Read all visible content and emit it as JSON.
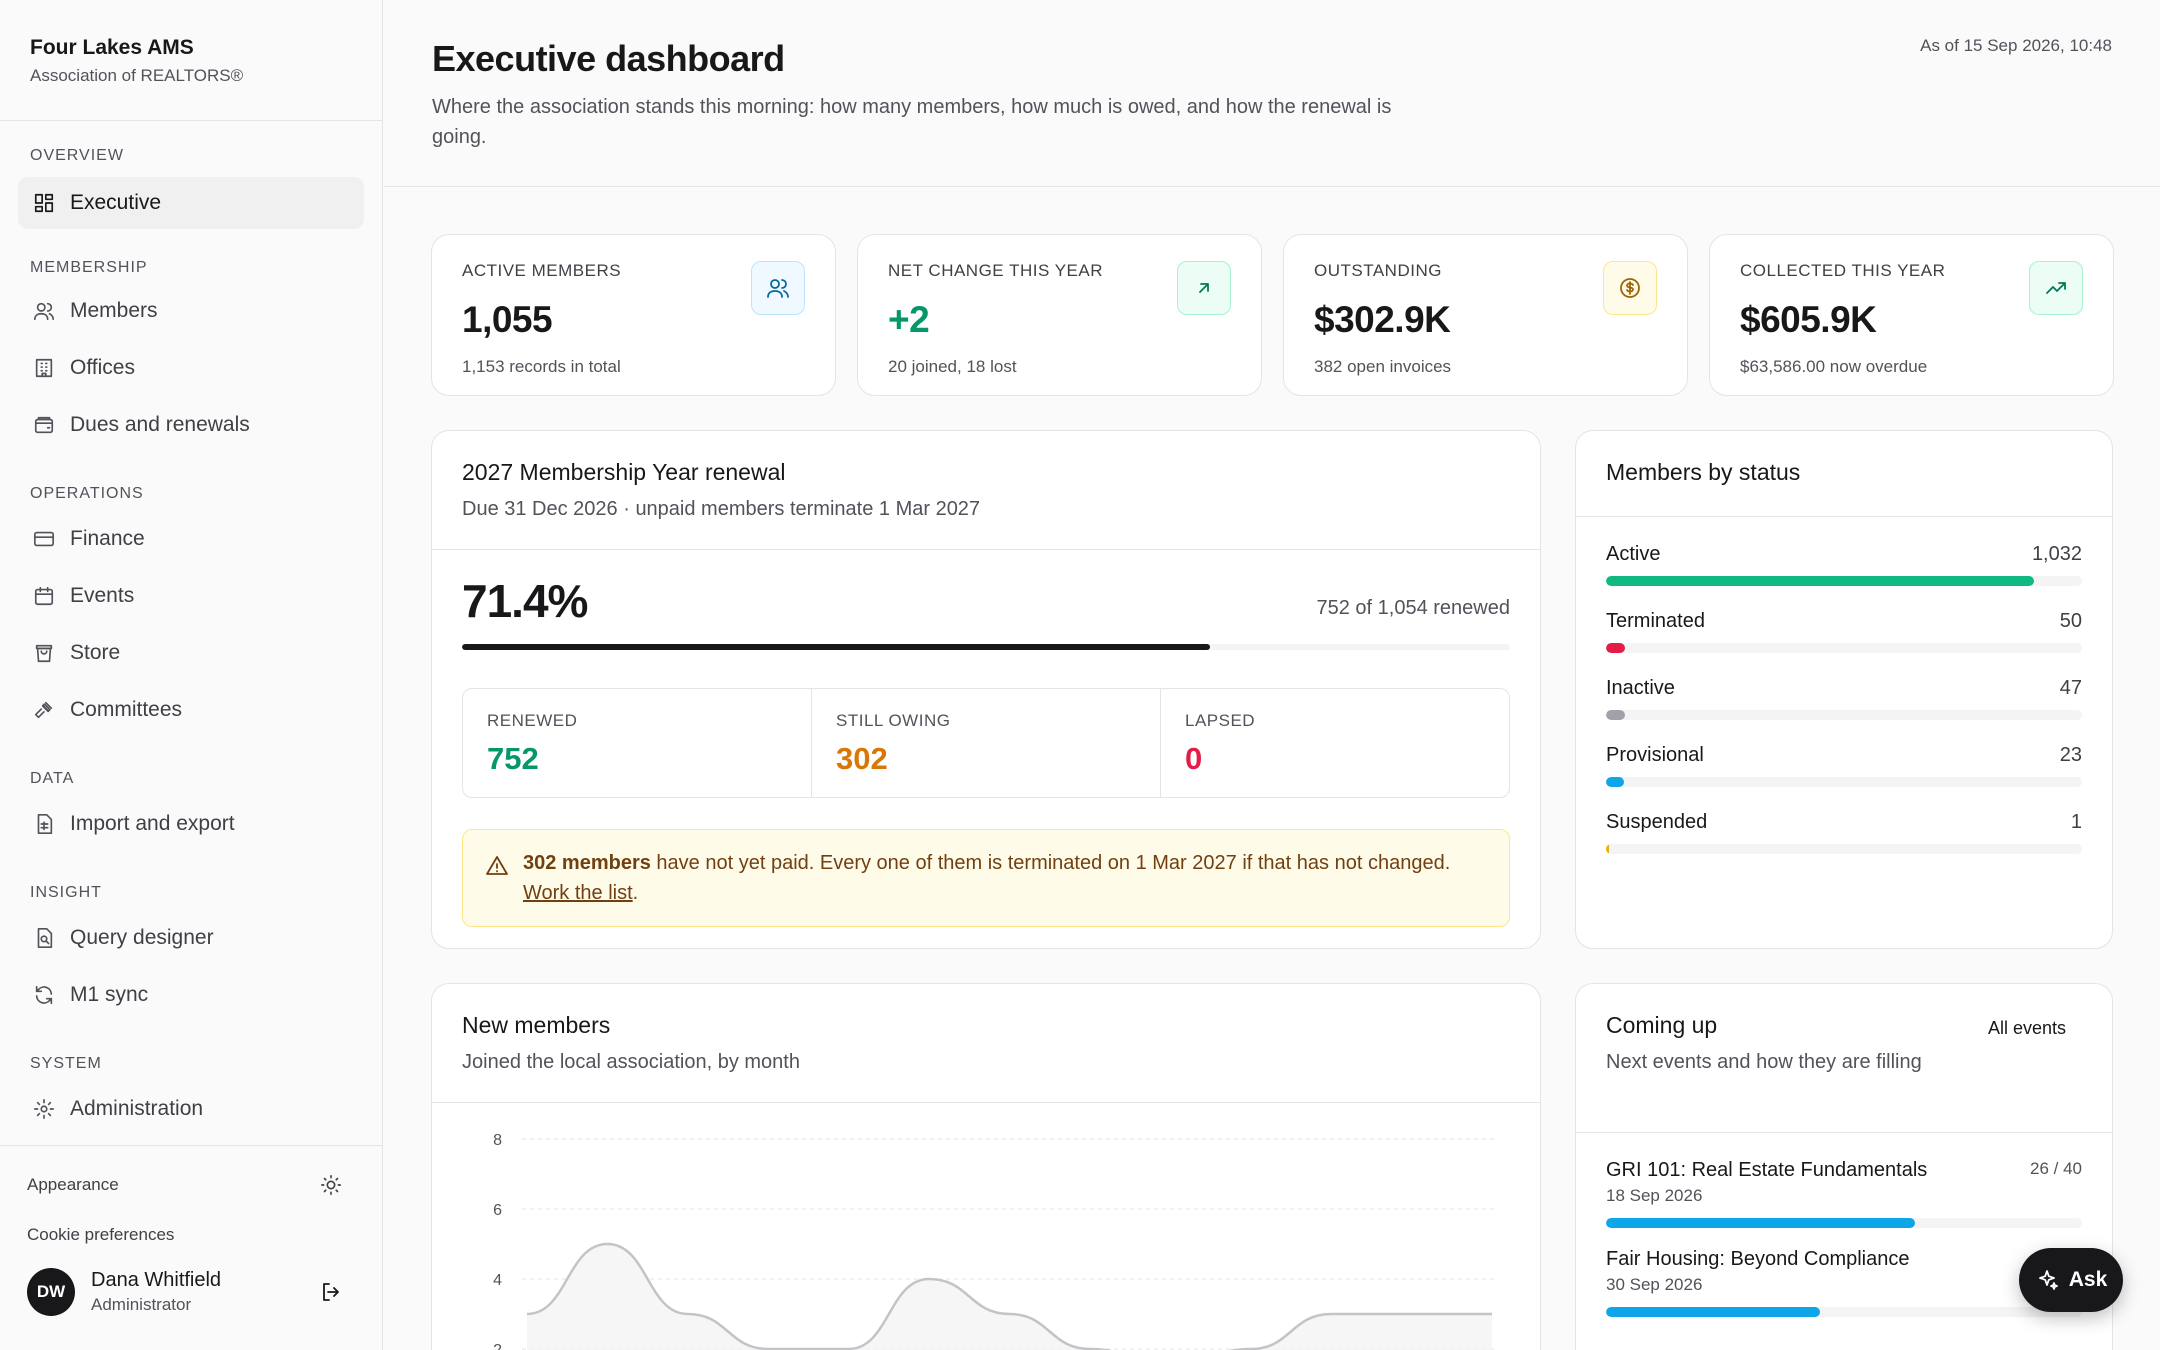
{
  "brand": {
    "name": "Four Lakes AMS",
    "subtitle": "Association of REALTORS®"
  },
  "nav": {
    "overview": "OVERVIEW",
    "executive": "Executive",
    "membership": "MEMBERSHIP",
    "members": "Members",
    "offices": "Offices",
    "dues": "Dues and renewals",
    "operations": "OPERATIONS",
    "finance": "Finance",
    "events": "Events",
    "store": "Store",
    "committees": "Committees",
    "data": "DATA",
    "import_export": "Import and export",
    "insight": "INSIGHT",
    "query_designer": "Query designer",
    "m1_sync": "M1 sync",
    "system": "SYSTEM",
    "administration": "Administration"
  },
  "footer": {
    "appearance": "Appearance",
    "cookies": "Cookie preferences",
    "user_initials": "DW",
    "user_name": "Dana Whitfield",
    "user_role": "Administrator"
  },
  "header": {
    "title": "Executive dashboard",
    "subtitle": "Where the association stands this morning: how many members, how much is owed, and how the renewal is going.",
    "as_of": "As of 15 Sep 2026, 10:48"
  },
  "kpis": [
    {
      "label": "ACTIVE MEMBERS",
      "value": "1,055",
      "sub": "1,153 records in total",
      "icon": "users-icon",
      "value_color": "#18181b"
    },
    {
      "label": "NET CHANGE THIS YEAR",
      "value": "+2",
      "sub": "20 joined, 18 lost",
      "icon": "arrow-up-right-icon",
      "value_color": "#059669"
    },
    {
      "label": "OUTSTANDING",
      "value": "$302.9K",
      "sub": "382 open invoices",
      "icon": "dollar-icon",
      "value_color": "#18181b"
    },
    {
      "label": "COLLECTED THIS YEAR",
      "value": "$605.9K",
      "sub": "$63,586.00 now overdue",
      "icon": "trending-up-icon",
      "value_color": "#18181b"
    }
  ],
  "renewal": {
    "title": "2027 Membership Year renewal",
    "subtitle": "Due 31 Dec 2026 · unpaid members terminate 1 Mar 2027",
    "percent": "71.4%",
    "progress": 0.714,
    "renewed_text": "752 of 1,054 renewed",
    "stats": [
      {
        "label": "RENEWED",
        "value": "752",
        "color": "#059669"
      },
      {
        "label": "STILL OWING",
        "value": "302",
        "color": "#d97706"
      },
      {
        "label": "LAPSED",
        "value": "0",
        "color": "#e11d48"
      }
    ],
    "alert_bold": "302 members",
    "alert_text": " have not yet paid. Every one of them is terminated on 1 Mar 2027 if that has not changed. ",
    "alert_link": "Work the list",
    "alert_end": "."
  },
  "status": {
    "title": "Members by status",
    "rows": [
      {
        "label": "Active",
        "count": "1,032",
        "fraction": 0.9,
        "color": "#10b981"
      },
      {
        "label": "Terminated",
        "count": "50",
        "fraction": 0.04,
        "color": "#e11d48"
      },
      {
        "label": "Inactive",
        "count": "47",
        "fraction": 0.04,
        "color": "#a1a1aa"
      },
      {
        "label": "Provisional",
        "count": "23",
        "fraction": 0.02,
        "color": "#0ea5e9"
      },
      {
        "label": "Suspended",
        "count": "1",
        "fraction": 0.002,
        "color": "#eab308"
      }
    ]
  },
  "new_members": {
    "title": "New members",
    "subtitle": "Joined the local association, by month"
  },
  "chart_data": {
    "type": "area",
    "title": "New members",
    "ylim": [
      2,
      8
    ],
    "yticks": [
      "8",
      "6",
      "4",
      "2"
    ],
    "x": [
      0,
      1,
      2,
      3,
      4,
      5,
      6,
      7,
      8,
      9,
      10,
      11,
      12
    ],
    "values": [
      3,
      5,
      3,
      2,
      2,
      4,
      3,
      2,
      1.5,
      2,
      3,
      3,
      3
    ],
    "grid": true
  },
  "events": {
    "title": "Coming up",
    "subtitle": "Next events and how they are filling",
    "all_link": "All events",
    "items": [
      {
        "name": "GRI 101: Real Estate Fundamentals",
        "date": "18 Sep 2026",
        "count": "26 / 40",
        "fraction": 0.65
      },
      {
        "name": "Fair Housing: Beyond Compliance",
        "date": "30 Sep 2026",
        "count": "",
        "fraction": 0.45
      }
    ]
  },
  "ask_label": "Ask",
  "colors": {
    "accent": "#18181b",
    "success": "#059669",
    "warning": "#d97706",
    "danger": "#e11d48",
    "info": "#0ea5e9"
  }
}
